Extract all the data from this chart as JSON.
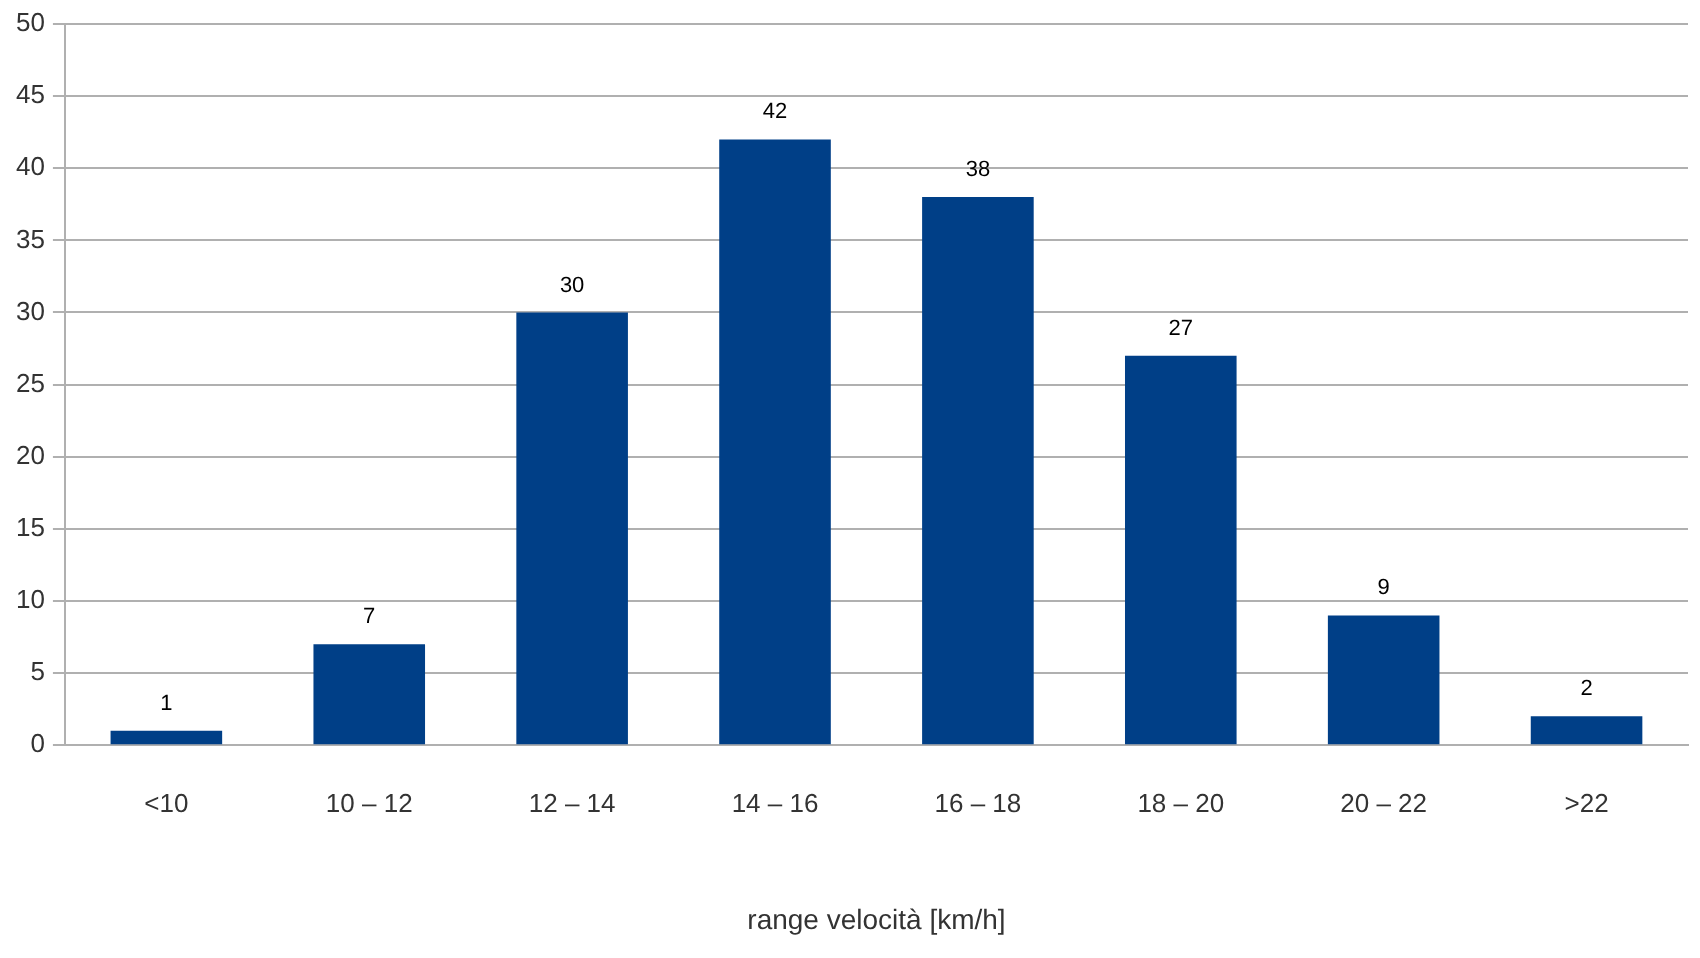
{
  "chart_data": {
    "type": "bar",
    "xlabel": "range velocità [km/h]",
    "categories": [
      "<10",
      "10 – 12",
      "12 – 14",
      "14 – 16",
      "16 – 18",
      "18 – 20",
      "20 – 22",
      ">22"
    ],
    "values": [
      1,
      7,
      30,
      42,
      38,
      27,
      9,
      2
    ],
    "color": "#003f87",
    "ylim": [
      0,
      50
    ],
    "yticks": [
      0,
      5,
      10,
      15,
      20,
      25,
      30,
      35,
      40,
      45,
      50
    ],
    "grid": "y",
    "data_labels": true
  }
}
